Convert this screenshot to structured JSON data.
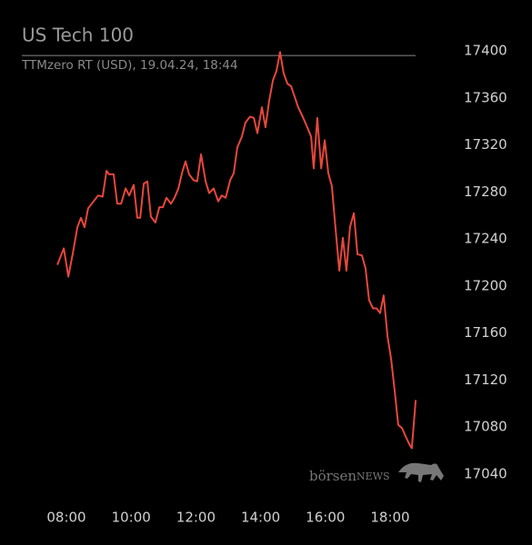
{
  "chart_data": {
    "type": "line",
    "title": "US Tech 100",
    "subtitle": "TTMzero RT (USD), 19.04.24, 18:44",
    "watermark": [
      "börsen",
      "NEWS"
    ],
    "x": [
      7.72,
      7.92,
      8.06,
      8.2,
      8.34,
      8.45,
      8.56,
      8.67,
      8.84,
      8.98,
      9.12,
      9.24,
      9.32,
      9.46,
      9.57,
      9.69,
      9.83,
      9.94,
      10.08,
      10.19,
      10.28,
      10.39,
      10.5,
      10.61,
      10.75,
      10.87,
      10.98,
      11.09,
      11.23,
      11.34,
      11.46,
      11.57,
      11.68,
      11.79,
      11.93,
      12.04,
      12.16,
      12.3,
      12.41,
      12.55,
      12.69,
      12.8,
      12.92,
      13.06,
      13.17,
      13.28,
      13.42,
      13.53,
      13.67,
      13.79,
      13.9,
      14.04,
      14.15,
      14.26,
      14.38,
      14.49,
      14.6,
      14.71,
      14.83,
      14.94,
      15.05,
      15.16,
      15.3,
      15.44,
      15.56,
      15.64,
      15.75,
      15.87,
      15.98,
      16.09,
      16.2,
      16.31,
      16.43,
      16.54,
      16.65,
      16.76,
      16.88,
      16.99,
      17.13,
      17.24,
      17.35,
      17.47,
      17.58,
      17.69,
      17.8,
      17.92,
      18.03,
      18.14,
      18.25,
      18.37,
      18.48,
      18.6,
      18.67,
      18.79
    ],
    "series": [
      {
        "color": "#e8473c",
        "values": [
          17218,
          17232,
          17208,
          17228,
          17250,
          17258,
          17250,
          17266,
          17272,
          17277,
          17276,
          17298,
          17295,
          17295,
          17270,
          17270,
          17283,
          17277,
          17286,
          17258,
          17258,
          17287,
          17289,
          17259,
          17254,
          17267,
          17267,
          17275,
          17270,
          17275,
          17283,
          17296,
          17306,
          17295,
          17290,
          17289,
          17312,
          17289,
          17279,
          17283,
          17272,
          17277,
          17275,
          17290,
          17296,
          17318,
          17327,
          17339,
          17344,
          17343,
          17330,
          17352,
          17335,
          17357,
          17375,
          17383,
          17399,
          17381,
          17372,
          17370,
          17361,
          17352,
          17344,
          17335,
          17327,
          17300,
          17343,
          17300,
          17324,
          17296,
          17285,
          17250,
          17213,
          17241,
          17213,
          17250,
          17262,
          17227,
          17226,
          17215,
          17188,
          17181,
          17181,
          17177,
          17192,
          17157,
          17138,
          17111,
          17082,
          17079,
          17072,
          17065,
          17062,
          17103
        ]
      }
    ],
    "hline": 17396,
    "xlim": [
      7.5,
      19
    ],
    "xticks": [
      {
        "value": 8,
        "label": "08:00"
      },
      {
        "value": 10,
        "label": "10:00"
      },
      {
        "value": 12,
        "label": "12:00"
      },
      {
        "value": 14,
        "label": "14:00"
      },
      {
        "value": 16,
        "label": "16:00"
      },
      {
        "value": 18,
        "label": "18:00"
      }
    ],
    "ylim": [
      17030,
      17410
    ],
    "yticks": [
      17040,
      17080,
      17120,
      17160,
      17200,
      17240,
      17280,
      17320,
      17360,
      17400
    ]
  }
}
